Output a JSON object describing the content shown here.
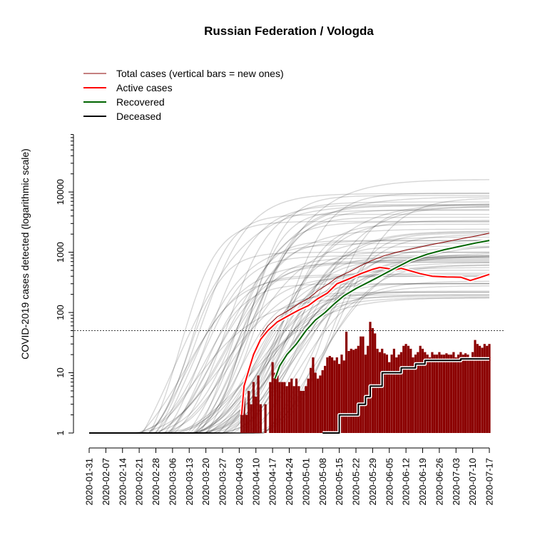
{
  "chart_data": {
    "type": "line",
    "title": "Russian Federation / Vologda",
    "ylabel": "COVID-2019 cases detected (logarithmic scale)",
    "xlabel": "",
    "y_scale": "log",
    "ylim": [
      1,
      120000
    ],
    "xlim": [
      "2020-01-31",
      "2020-07-17"
    ],
    "y_ticks": [
      1,
      10,
      100,
      1000,
      10000
    ],
    "x_ticks": [
      "2020-01-31",
      "2020-02-07",
      "2020-02-14",
      "2020-02-21",
      "2020-02-28",
      "2020-03-06",
      "2020-03-13",
      "2020-03-20",
      "2020-03-27",
      "2020-04-03",
      "2020-04-10",
      "2020-04-17",
      "2020-04-24",
      "2020-05-01",
      "2020-05-08",
      "2020-05-15",
      "2020-05-22",
      "2020-05-29",
      "2020-06-05",
      "2020-06-12",
      "2020-06-19",
      "2020-06-26",
      "2020-07-03",
      "2020-07-10",
      "2020-07-17"
    ],
    "reference_line": 50,
    "legend_position": "top-left",
    "legend": [
      {
        "label": "Total cases (vertical bars = new ones)",
        "color": "#8b0000",
        "width": 1
      },
      {
        "label": "Active cases",
        "color": "#ff0000",
        "width": 2
      },
      {
        "label": "Recovered",
        "color": "#006400",
        "width": 2
      },
      {
        "label": "Deceased",
        "color": "#000000",
        "width": 2
      }
    ],
    "series": [
      {
        "name": "Total cases",
        "color": "#8b0000",
        "points": [
          [
            "2020-04-04",
            2
          ],
          [
            "2020-04-05",
            6
          ],
          [
            "2020-04-07",
            12
          ],
          [
            "2020-04-09",
            22
          ],
          [
            "2020-04-12",
            40
          ],
          [
            "2020-04-15",
            60
          ],
          [
            "2020-04-19",
            85
          ],
          [
            "2020-04-24",
            110
          ],
          [
            "2020-04-28",
            140
          ],
          [
            "2020-05-02",
            170
          ],
          [
            "2020-05-06",
            230
          ],
          [
            "2020-05-10",
            290
          ],
          [
            "2020-05-14",
            380
          ],
          [
            "2020-05-19",
            470
          ],
          [
            "2020-05-24",
            600
          ],
          [
            "2020-05-29",
            740
          ],
          [
            "2020-06-03",
            880
          ],
          [
            "2020-06-08",
            1000
          ],
          [
            "2020-06-15",
            1150
          ],
          [
            "2020-06-22",
            1320
          ],
          [
            "2020-06-29",
            1500
          ],
          [
            "2020-07-06",
            1700
          ],
          [
            "2020-07-12",
            1880
          ],
          [
            "2020-07-17",
            2080
          ]
        ]
      },
      {
        "name": "Active cases",
        "color": "#ff0000",
        "points": [
          [
            "2020-04-04",
            2
          ],
          [
            "2020-04-05",
            6
          ],
          [
            "2020-04-07",
            11
          ],
          [
            "2020-04-09",
            20
          ],
          [
            "2020-04-12",
            36
          ],
          [
            "2020-04-15",
            50
          ],
          [
            "2020-04-19",
            70
          ],
          [
            "2020-04-24",
            90
          ],
          [
            "2020-04-28",
            110
          ],
          [
            "2020-05-02",
            130
          ],
          [
            "2020-05-06",
            170
          ],
          [
            "2020-05-10",
            210
          ],
          [
            "2020-05-14",
            300
          ],
          [
            "2020-05-19",
            360
          ],
          [
            "2020-05-24",
            440
          ],
          [
            "2020-05-29",
            520
          ],
          [
            "2020-06-01",
            560
          ],
          [
            "2020-06-04",
            540
          ],
          [
            "2020-06-07",
            510
          ],
          [
            "2020-06-10",
            540
          ],
          [
            "2020-06-14",
            490
          ],
          [
            "2020-06-18",
            440
          ],
          [
            "2020-06-23",
            400
          ],
          [
            "2020-06-29",
            390
          ],
          [
            "2020-07-05",
            385
          ],
          [
            "2020-07-09",
            340
          ],
          [
            "2020-07-13",
            380
          ],
          [
            "2020-07-17",
            430
          ]
        ]
      },
      {
        "name": "Recovered",
        "color": "#006400",
        "points": [
          [
            "2020-04-18",
            8
          ],
          [
            "2020-04-20",
            13
          ],
          [
            "2020-04-23",
            20
          ],
          [
            "2020-04-27",
            30
          ],
          [
            "2020-05-01",
            50
          ],
          [
            "2020-05-05",
            75
          ],
          [
            "2020-05-09",
            100
          ],
          [
            "2020-05-13",
            140
          ],
          [
            "2020-05-17",
            190
          ],
          [
            "2020-05-22",
            250
          ],
          [
            "2020-05-28",
            330
          ],
          [
            "2020-06-03",
            440
          ],
          [
            "2020-06-08",
            560
          ],
          [
            "2020-06-14",
            740
          ],
          [
            "2020-06-21",
            930
          ],
          [
            "2020-06-28",
            1100
          ],
          [
            "2020-07-05",
            1260
          ],
          [
            "2020-07-11",
            1420
          ],
          [
            "2020-07-17",
            1570
          ]
        ]
      },
      {
        "name": "Deceased",
        "color": "#000000",
        "points": [
          [
            "2020-05-08",
            1
          ],
          [
            "2020-05-15",
            2
          ],
          [
            "2020-05-23",
            3
          ],
          [
            "2020-05-26",
            4
          ],
          [
            "2020-05-28",
            6
          ],
          [
            "2020-06-02",
            10
          ],
          [
            "2020-06-10",
            12
          ],
          [
            "2020-06-16",
            14
          ],
          [
            "2020-06-20",
            16
          ],
          [
            "2020-07-05",
            17
          ],
          [
            "2020-07-17",
            17
          ]
        ]
      }
    ],
    "new_cases": {
      "color": "#8b0000",
      "points": [
        [
          "2020-04-04",
          2
        ],
        [
          "2020-04-05",
          4
        ],
        [
          "2020-04-06",
          2
        ],
        [
          "2020-04-07",
          5
        ],
        [
          "2020-04-08",
          3
        ],
        [
          "2020-04-09",
          7
        ],
        [
          "2020-04-10",
          4
        ],
        [
          "2020-04-11",
          9
        ],
        [
          "2020-04-12",
          3
        ],
        [
          "2020-04-14",
          3
        ],
        [
          "2020-04-16",
          7
        ],
        [
          "2020-04-17",
          15
        ],
        [
          "2020-04-18",
          10
        ],
        [
          "2020-04-19",
          9
        ],
        [
          "2020-04-20",
          7
        ],
        [
          "2020-04-21",
          7
        ],
        [
          "2020-04-22",
          7
        ],
        [
          "2020-04-23",
          6
        ],
        [
          "2020-04-24",
          7
        ],
        [
          "2020-04-25",
          8
        ],
        [
          "2020-04-26",
          6
        ],
        [
          "2020-04-27",
          8
        ],
        [
          "2020-04-28",
          6
        ],
        [
          "2020-04-29",
          5
        ],
        [
          "2020-04-30",
          5
        ],
        [
          "2020-05-01",
          6
        ],
        [
          "2020-05-02",
          8
        ],
        [
          "2020-05-03",
          12
        ],
        [
          "2020-05-04",
          18
        ],
        [
          "2020-05-05",
          10
        ],
        [
          "2020-05-06",
          8
        ],
        [
          "2020-05-07",
          9
        ],
        [
          "2020-05-08",
          11
        ],
        [
          "2020-05-09",
          13
        ],
        [
          "2020-05-10",
          18
        ],
        [
          "2020-05-11",
          19
        ],
        [
          "2020-05-12",
          18
        ],
        [
          "2020-05-13",
          16
        ],
        [
          "2020-05-14",
          18
        ],
        [
          "2020-05-15",
          14
        ],
        [
          "2020-05-16",
          20
        ],
        [
          "2020-05-17",
          16
        ],
        [
          "2020-05-18",
          48
        ],
        [
          "2020-05-19",
          23
        ],
        [
          "2020-05-20",
          25
        ],
        [
          "2020-05-21",
          24
        ],
        [
          "2020-05-22",
          25
        ],
        [
          "2020-05-23",
          28
        ],
        [
          "2020-05-24",
          40
        ],
        [
          "2020-05-25",
          40
        ],
        [
          "2020-05-26",
          20
        ],
        [
          "2020-05-27",
          28
        ],
        [
          "2020-05-28",
          70
        ],
        [
          "2020-05-29",
          55
        ],
        [
          "2020-05-30",
          45
        ],
        [
          "2020-05-31",
          25
        ],
        [
          "2020-06-01",
          22
        ],
        [
          "2020-06-02",
          25
        ],
        [
          "2020-06-03",
          21
        ],
        [
          "2020-06-04",
          20
        ],
        [
          "2020-06-05",
          15
        ],
        [
          "2020-06-06",
          20
        ],
        [
          "2020-06-07",
          25
        ],
        [
          "2020-06-08",
          18
        ],
        [
          "2020-06-09",
          20
        ],
        [
          "2020-06-10",
          22
        ],
        [
          "2020-06-11",
          28
        ],
        [
          "2020-06-12",
          30
        ],
        [
          "2020-06-13",
          28
        ],
        [
          "2020-06-14",
          25
        ],
        [
          "2020-06-15",
          18
        ],
        [
          "2020-06-16",
          20
        ],
        [
          "2020-06-17",
          22
        ],
        [
          "2020-06-18",
          28
        ],
        [
          "2020-06-19",
          25
        ],
        [
          "2020-06-20",
          22
        ],
        [
          "2020-06-21",
          20
        ],
        [
          "2020-06-22",
          18
        ],
        [
          "2020-06-23",
          22
        ],
        [
          "2020-06-24",
          20
        ],
        [
          "2020-06-25",
          20
        ],
        [
          "2020-06-26",
          22
        ],
        [
          "2020-06-27",
          20
        ],
        [
          "2020-06-28",
          20
        ],
        [
          "2020-06-29",
          21
        ],
        [
          "2020-06-30",
          20
        ],
        [
          "2020-07-01",
          20
        ],
        [
          "2020-07-02",
          22
        ],
        [
          "2020-07-03",
          18
        ],
        [
          "2020-07-04",
          20
        ],
        [
          "2020-07-05",
          22
        ],
        [
          "2020-07-06",
          20
        ],
        [
          "2020-07-07",
          21
        ],
        [
          "2020-07-08",
          20
        ],
        [
          "2020-07-09",
          18
        ],
        [
          "2020-07-10",
          22
        ],
        [
          "2020-07-11",
          35
        ],
        [
          "2020-07-12",
          30
        ],
        [
          "2020-07-13",
          28
        ],
        [
          "2020-07-14",
          26
        ],
        [
          "2020-07-15",
          30
        ],
        [
          "2020-07-16",
          28
        ],
        [
          "2020-07-17",
          30
        ]
      ]
    },
    "background_regions": {
      "color": "#000000",
      "opacity": 0.16,
      "count": 70
    }
  }
}
